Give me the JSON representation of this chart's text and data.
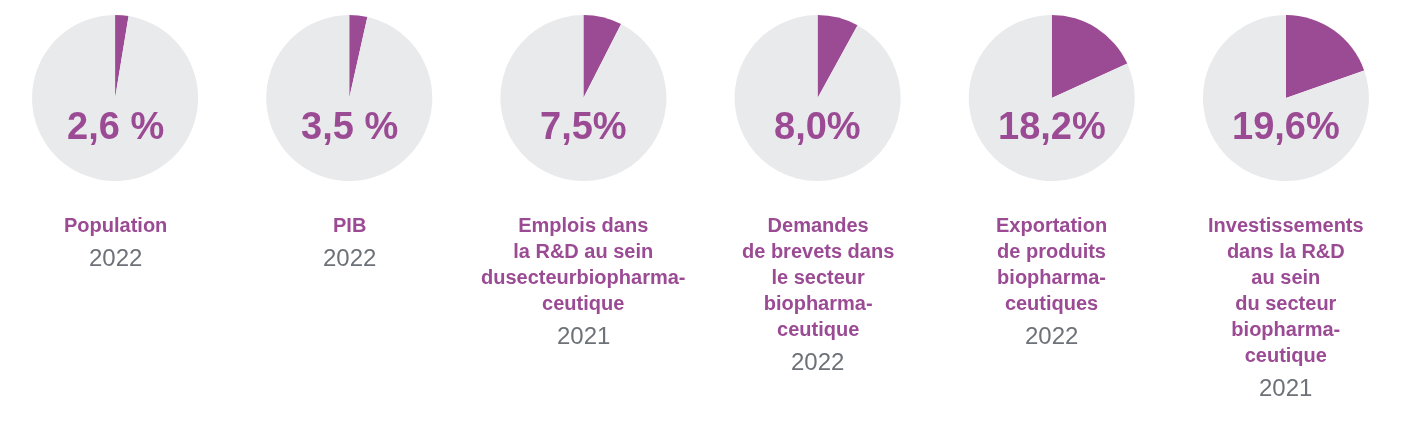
{
  "chart_data": [
    {
      "type": "pie",
      "title": "Population",
      "subtitle": "2022",
      "categories": [
        null,
        null
      ],
      "values": [
        2.6,
        97.4
      ],
      "colors": [
        "#9b4a94",
        "#e9eaec"
      ],
      "annotations": [
        "2,6 %"
      ]
    },
    {
      "type": "pie",
      "title": "PIB",
      "subtitle": "2022",
      "categories": [
        null,
        null
      ],
      "values": [
        3.5,
        96.5
      ],
      "colors": [
        "#9b4a94",
        "#e9eaec"
      ],
      "annotations": [
        "3,5 %"
      ]
    },
    {
      "type": "pie",
      "title": "Emplois dans\nla R&D au sein\ndusecteurbiopharma-\nceutique",
      "subtitle": "2021",
      "categories": [
        null,
        null
      ],
      "values": [
        7.5,
        92.5
      ],
      "colors": [
        "#9b4a94",
        "#e9eaec"
      ],
      "annotations": [
        "7,5%"
      ]
    },
    {
      "type": "pie",
      "title": "Demandes\nde brevets dans\nle secteur\nbiopharma-\nceutique",
      "subtitle": "2022",
      "categories": [
        null,
        null
      ],
      "values": [
        8.0,
        92.0
      ],
      "colors": [
        "#9b4a94",
        "#e9eaec"
      ],
      "annotations": [
        "8,0%"
      ]
    },
    {
      "type": "pie",
      "title": "Exportation\nde produits\nbiopharma-\nceutiques",
      "subtitle": "2022",
      "categories": [
        null,
        null
      ],
      "values": [
        18.2,
        81.8
      ],
      "colors": [
        "#9b4a94",
        "#e9eaec"
      ],
      "annotations": [
        "18,2%"
      ]
    },
    {
      "type": "pie",
      "title": "Investissements\ndans la R&D\nau sein\ndu secteur\nbiopharma-\nceutique",
      "subtitle": "2021",
      "categories": [
        null,
        null
      ],
      "values": [
        19.6,
        80.4
      ],
      "colors": [
        "#9b4a94",
        "#e9eaec"
      ],
      "annotations": [
        "19,6%"
      ]
    }
  ]
}
